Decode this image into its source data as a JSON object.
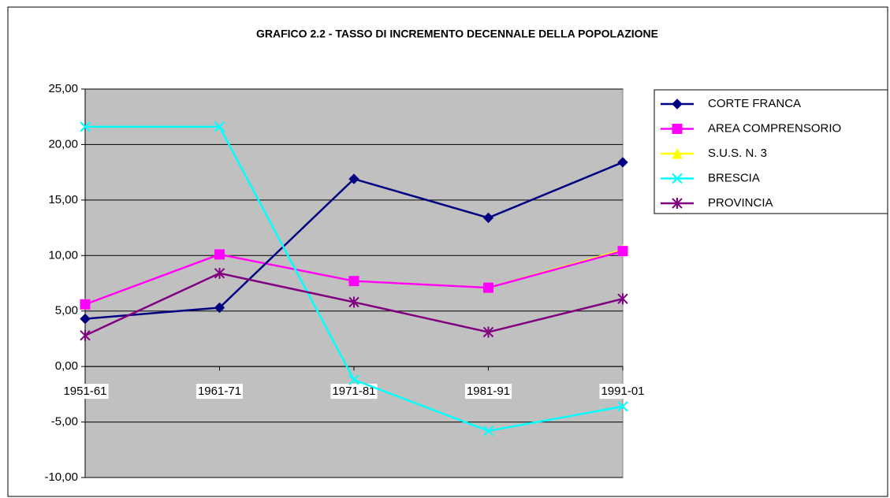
{
  "chart_data": {
    "type": "line",
    "title": "GRAFICO 2.2 - TASSO DI INCREMENTO DECENNALE DELLA POPOLAZIONE",
    "categories": [
      "1951-61",
      "1961-71",
      "1971-81",
      "1981-91",
      "1991-01"
    ],
    "series": [
      {
        "name": "CORTE FRANCA",
        "color": "#000080",
        "marker": "diamond",
        "values": [
          4.3,
          5.3,
          16.9,
          13.4,
          18.4
        ]
      },
      {
        "name": "AREA COMPRENSORIO",
        "color": "#ff00ff",
        "marker": "square",
        "values": [
          5.6,
          10.1,
          7.7,
          7.1,
          10.4
        ]
      },
      {
        "name": "S.U.S. N. 3",
        "color": "#ffff00",
        "marker": "triangle",
        "values": [
          5.6,
          10.1,
          7.7,
          7.1,
          10.5
        ]
      },
      {
        "name": "BRESCIA",
        "color": "#00ffff",
        "marker": "x",
        "values": [
          21.6,
          21.6,
          -1.2,
          -5.8,
          -3.6
        ]
      },
      {
        "name": "PROVINCIA",
        "color": "#800080",
        "marker": "star",
        "values": [
          2.8,
          8.4,
          5.8,
          3.1,
          6.1
        ]
      }
    ],
    "ylim": [
      -10,
      25
    ],
    "yticks": [
      {
        "value": -10,
        "label": "-10,00"
      },
      {
        "value": -5,
        "label": "-5,00"
      },
      {
        "value": 0,
        "label": "0,00"
      },
      {
        "value": 5,
        "label": "5,00"
      },
      {
        "value": 10,
        "label": "10,00"
      },
      {
        "value": 15,
        "label": "15,00"
      },
      {
        "value": 20,
        "label": "20,00"
      },
      {
        "value": 25,
        "label": "25,00"
      }
    ],
    "grid": true,
    "legend": "right"
  }
}
